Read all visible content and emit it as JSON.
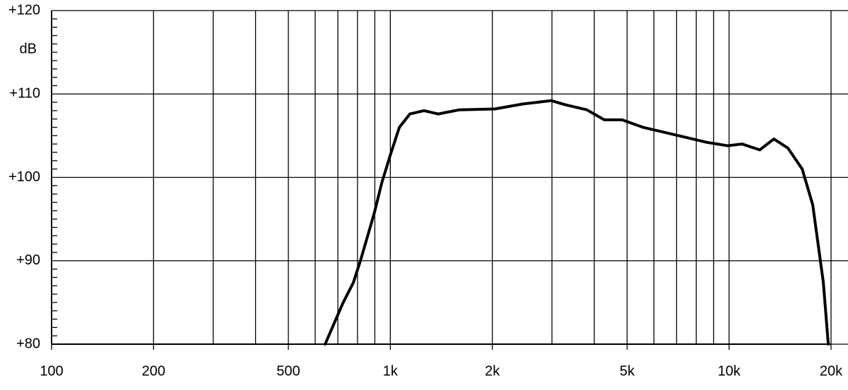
{
  "chart_data": {
    "type": "line",
    "y_label": "dB",
    "log_x": true,
    "xlim": [
      100,
      20000
    ],
    "ylim": [
      80,
      120
    ],
    "xticks": [
      100,
      200,
      500,
      {
        "value": 1000,
        "label": "1k"
      },
      {
        "value": 2000,
        "label": "2k"
      },
      {
        "value": 5000,
        "label": "5k"
      },
      {
        "value": 10000,
        "label": "10k"
      },
      {
        "value": 20000,
        "label": "20k"
      }
    ],
    "x_grid": [
      200,
      300,
      400,
      500,
      600,
      700,
      800,
      900,
      1000,
      2000,
      3000,
      4000,
      5000,
      6000,
      7000,
      8000,
      9000,
      10000,
      20000
    ],
    "yticks": [
      {
        "value": 80,
        "label": "+80"
      },
      {
        "value": 90,
        "label": "+90"
      },
      {
        "value": 100,
        "label": "+100"
      },
      {
        "value": 110,
        "label": "+110"
      },
      {
        "value": 120,
        "label": "+120"
      }
    ],
    "y_minor_ticks": [
      81,
      82,
      83,
      84,
      85,
      86,
      87,
      88,
      89,
      91,
      92,
      93,
      94,
      95,
      96,
      97,
      98,
      99,
      101,
      102,
      103,
      104,
      105,
      106,
      107,
      108,
      109,
      111,
      112,
      113,
      114,
      115,
      116,
      117,
      118,
      119
    ],
    "grid": true,
    "series": [
      {
        "color": "#000000",
        "x": [
          642,
          724,
          778,
          816,
          856,
          899,
          943,
          1000,
          1063,
          1142,
          1257,
          1384,
          1599,
          2034,
          2464,
          2985,
          3288,
          3803,
          4281,
          4829,
          5576,
          6434,
          7437,
          8594,
          9900,
          10925,
          12320,
          13560,
          14930,
          16440,
          17660,
          18980,
          19630
        ],
        "values": [
          80,
          84.9,
          87.4,
          90.0,
          92.9,
          95.9,
          99.3,
          102.7,
          106.0,
          107.6,
          108.0,
          107.6,
          108.1,
          108.2,
          108.8,
          109.2,
          108.7,
          108.1,
          106.9,
          106.9,
          106.0,
          105.4,
          104.8,
          104.2,
          103.8,
          104.0,
          103.3,
          104.6,
          103.5,
          101.0,
          96.7,
          87.4,
          80
        ]
      }
    ]
  }
}
